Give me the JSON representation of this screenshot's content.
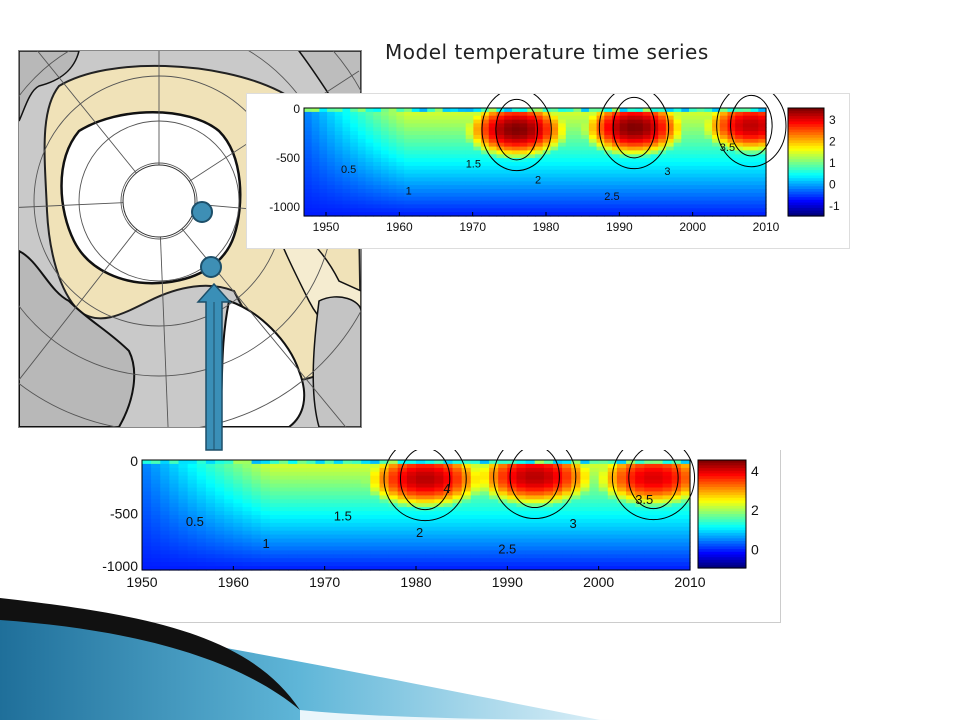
{
  "slide": {
    "title": "Model temperature time series"
  },
  "colors": {
    "arrow_fill": "#3a8fb7",
    "marker_fill": "#3e8fb5",
    "land": "#c8c8c8",
    "shelf": "#f0e2b8",
    "ocean": "#ffffff"
  },
  "icons": {
    "map": "arctic-polar-stereographic-map",
    "pointer": "up-arrow-icon"
  },
  "chart_data": [
    {
      "type": "heatmap",
      "title": "",
      "xlabel": "",
      "ylabel": "",
      "x_ticks": [
        "1950",
        "1960",
        "1970",
        "1980",
        "1990",
        "2000",
        "2010"
      ],
      "y_ticks": [
        "0",
        "-500",
        "-1000"
      ],
      "xlim": [
        1947,
        2010
      ],
      "ylim": [
        -1100,
        0
      ],
      "colorbar_ticks": [
        "3",
        "2",
        "1",
        "0",
        "-1"
      ],
      "colorbar_range": [
        -1.5,
        3.5
      ],
      "contour_labels": [
        "0.5",
        "1",
        "1.5",
        "2",
        "2.5",
        "3",
        "3.5"
      ],
      "warm_cores": [
        {
          "year": 1976,
          "depth": -220,
          "value": 3.5
        },
        {
          "year": 1992,
          "depth": -200,
          "value": 3.5
        },
        {
          "year": 2008,
          "depth": -180,
          "value": 3.2
        }
      ]
    },
    {
      "type": "heatmap",
      "title": "",
      "xlabel": "",
      "ylabel": "",
      "x_ticks": [
        "1950",
        "1960",
        "1970",
        "1980",
        "1990",
        "2000",
        "2010"
      ],
      "y_ticks": [
        "0",
        "-500",
        "-1000"
      ],
      "xlim": [
        1950,
        2010
      ],
      "ylim": [
        -1050,
        0
      ],
      "colorbar_ticks": [
        "4",
        "2",
        "0"
      ],
      "colorbar_range": [
        -1,
        4.5
      ],
      "contour_labels": [
        "0.5",
        "1",
        "1.5",
        "2",
        "2.5",
        "3",
        "3.5",
        "4"
      ],
      "warm_cores": [
        {
          "year": 1981,
          "depth": -180,
          "value": 4.2
        },
        {
          "year": 1993,
          "depth": -160,
          "value": 4.2
        },
        {
          "year": 2006,
          "depth": -170,
          "value": 4.0
        }
      ]
    }
  ]
}
